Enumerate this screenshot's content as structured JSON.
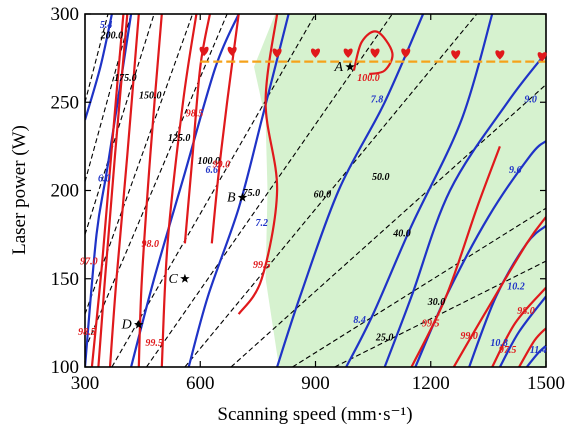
{
  "chart_data": {
    "type": "contour",
    "xlabel": "Scanning speed (mm·s⁻¹)",
    "ylabel": "Laser power (W)",
    "xlim": [
      300,
      1500
    ],
    "ylim": [
      100,
      300
    ],
    "xticks": [
      "300",
      "600",
      "900",
      "1200",
      "1500"
    ],
    "yticks": [
      "100",
      "150",
      "200",
      "250",
      "300"
    ],
    "colors": {
      "relative_density": "#e0191c",
      "roughness": "#1f33c7",
      "energy_density": "#000000",
      "region_fill": "#d6f2cf",
      "threshold_line": "#f5a21a"
    },
    "optimal_region": [
      [
        805,
        100
      ],
      [
        770,
        150
      ],
      [
        775,
        200
      ],
      [
        770,
        240
      ],
      [
        740,
        270
      ],
      [
        795,
        300
      ],
      [
        1500,
        300
      ],
      [
        1500,
        100
      ]
    ],
    "threshold_power": 273,
    "red_contours": [
      {
        "label": "",
        "points": [
          [
            318,
            100
          ],
          [
            345,
            160
          ],
          [
            372,
            230
          ],
          [
            400,
            300
          ]
        ],
        "label_at": null
      },
      {
        "label": "97.0",
        "points": [
          [
            335,
            100
          ],
          [
            352,
            150
          ],
          [
            378,
            220
          ],
          [
            410,
            300
          ]
        ],
        "label_at": [
          310,
          158
        ]
      },
      {
        "label": "98.5",
        "points": [
          [
            365,
            100
          ],
          [
            382,
            150
          ],
          [
            410,
            220
          ],
          [
            440,
            300
          ]
        ],
        "label_at": [
          305,
          118
        ]
      },
      {
        "label": "98.0",
        "points": [
          [
            440,
            100
          ],
          [
            448,
            150
          ],
          [
            470,
            220
          ],
          [
            500,
            300
          ]
        ],
        "label_at": [
          470,
          168
        ]
      },
      {
        "label": "99.5",
        "points": [
          [
            500,
            100
          ],
          [
            515,
            170
          ],
          [
            555,
            250
          ],
          [
            590,
            300
          ]
        ],
        "label_at": [
          480,
          112
        ]
      },
      {
        "label": "98.5",
        "points": [
          [
            560,
            170
          ],
          [
            580,
            220
          ],
          [
            600,
            270
          ],
          [
            625,
            300
          ]
        ],
        "label_at": [
          585,
          242
        ]
      },
      {
        "label": "99.0",
        "points": [
          [
            630,
            170
          ],
          [
            648,
            210
          ],
          [
            670,
            250
          ],
          [
            700,
            300
          ]
        ],
        "label_at": [
          655,
          213
        ]
      },
      {
        "label": "99.5",
        "points": [
          [
            700,
            130
          ],
          [
            760,
            150
          ],
          [
            800,
            200
          ],
          [
            770,
            250
          ],
          [
            800,
            300
          ]
        ],
        "label_at": [
          760,
          156
        ]
      },
      {
        "label": "99.5",
        "points": [
          [
            1150,
            100
          ],
          [
            1240,
            140
          ],
          [
            1320,
            190
          ],
          [
            1380,
            225
          ]
        ],
        "label_at": [
          1200,
          123
        ]
      },
      {
        "label": "99.0",
        "points": [
          [
            1260,
            100
          ],
          [
            1340,
            130
          ],
          [
            1450,
            170
          ],
          [
            1500,
            185
          ]
        ],
        "label_at": [
          1300,
          116
        ]
      },
      {
        "label": "98.0",
        "points": [
          [
            1360,
            100
          ],
          [
            1420,
            125
          ],
          [
            1500,
            145
          ]
        ],
        "label_at": [
          1448,
          130
        ]
      },
      {
        "label": "97.5",
        "points": [
          [
            1430,
            100
          ],
          [
            1470,
            115
          ],
          [
            1500,
            122
          ]
        ],
        "label_at": [
          1400,
          108
        ]
      },
      {
        "label": "100.0",
        "points": [
          [
            1000,
            268
          ],
          [
            1020,
            284
          ],
          [
            1060,
            290
          ],
          [
            1100,
            278
          ],
          [
            1080,
            268
          ],
          [
            1040,
            266
          ]
        ],
        "label_at": [
          1038,
          262
        ]
      }
    ],
    "blue_contours": [
      {
        "label": "5.4",
        "points": [
          [
            300,
            240
          ],
          [
            340,
            270
          ],
          [
            370,
            300
          ]
        ],
        "label_at": [
          355,
          292
        ]
      },
      {
        "label": "6.0",
        "points": [
          [
            300,
            100
          ],
          [
            330,
            175
          ],
          [
            360,
            215
          ],
          [
            420,
            300
          ]
        ],
        "label_at": [
          350,
          205
        ]
      },
      {
        "label": "6.6",
        "points": [
          [
            420,
            100
          ],
          [
            480,
            150
          ],
          [
            560,
            210
          ],
          [
            640,
            270
          ],
          [
            700,
            300
          ]
        ],
        "label_at": [
          630,
          210
        ]
      },
      {
        "label": "7.2",
        "points": [
          [
            570,
            100
          ],
          [
            620,
            140
          ],
          [
            700,
            190
          ],
          [
            760,
            240
          ],
          [
            830,
            300
          ]
        ],
        "label_at": [
          760,
          180
        ]
      },
      {
        "label": "7.8",
        "points": [
          [
            800,
            100
          ],
          [
            860,
            140
          ],
          [
            960,
            200
          ],
          [
            1080,
            250
          ],
          [
            1180,
            300
          ]
        ],
        "label_at": [
          1060,
          250
        ]
      },
      {
        "label": "8.4",
        "points": [
          [
            980,
            100
          ],
          [
            1050,
            130
          ],
          [
            1150,
            180
          ],
          [
            1280,
            240
          ],
          [
            1360,
            300
          ]
        ],
        "label_at": [
          1015,
          125
        ]
      },
      {
        "label": "9.0",
        "points": [
          [
            1080,
            100
          ],
          [
            1150,
            140
          ],
          [
            1250,
            200
          ],
          [
            1400,
            250
          ],
          [
            1500,
            278
          ]
        ],
        "label_at": [
          1460,
          250
        ]
      },
      {
        "label": "9.6",
        "points": [
          [
            1160,
            100
          ],
          [
            1240,
            140
          ],
          [
            1350,
            185
          ],
          [
            1460,
            220
          ],
          [
            1500,
            228
          ]
        ],
        "label_at": [
          1420,
          210
        ]
      },
      {
        "label": "10.2",
        "points": [
          [
            1300,
            100
          ],
          [
            1370,
            140
          ],
          [
            1450,
            170
          ],
          [
            1500,
            180
          ]
        ],
        "label_at": [
          1422,
          144
        ]
      },
      {
        "label": "10.8",
        "points": [
          [
            1380,
            100
          ],
          [
            1430,
            120
          ],
          [
            1500,
            140
          ]
        ],
        "label_at": [
          1378,
          112
        ]
      },
      {
        "label": "11.4",
        "points": [
          [
            1450,
            100
          ],
          [
            1480,
            108
          ],
          [
            1500,
            112
          ]
        ],
        "label_at": [
          1480,
          108
        ]
      }
    ],
    "energy_lines": [
      {
        "label": "200.0",
        "points": [
          [
            300,
            250
          ],
          [
            360,
            300
          ]
        ],
        "label_at": [
          370,
          286
        ]
      },
      {
        "label": "175.0",
        "points": [
          [
            300,
            205
          ],
          [
            420,
            300
          ]
        ],
        "label_at": [
          405,
          262
        ]
      },
      {
        "label": "150.0",
        "points": [
          [
            300,
            175
          ],
          [
            480,
            300
          ]
        ],
        "label_at": [
          470,
          252
        ]
      },
      {
        "label": "125.0",
        "points": [
          [
            300,
            130
          ],
          [
            580,
            300
          ]
        ],
        "label_at": [
          545,
          228
        ]
      },
      {
        "label": "100.0",
        "points": [
          [
            300,
            110
          ],
          [
            670,
            300
          ]
        ],
        "label_at": [
          622,
          215
        ]
      },
      {
        "label": "75.0",
        "points": [
          [
            370,
            100
          ],
          [
            900,
            300
          ]
        ],
        "label_at": [
          733,
          197
        ]
      },
      {
        "label": "60.0",
        "points": [
          [
            460,
            100
          ],
          [
            1100,
            300
          ]
        ],
        "label_at": [
          918,
          196
        ]
      },
      {
        "label": "50.0",
        "points": [
          [
            560,
            100
          ],
          [
            1320,
            300
          ]
        ],
        "label_at": [
          1070,
          206
        ]
      },
      {
        "label": "40.0",
        "points": [
          [
            680,
            100
          ],
          [
            1500,
            260
          ]
        ],
        "label_at": [
          1125,
          174
        ]
      },
      {
        "label": "30.0",
        "points": [
          [
            840,
            100
          ],
          [
            1500,
            190
          ]
        ],
        "label_at": [
          1215,
          135
        ]
      },
      {
        "label": "25.0",
        "points": [
          [
            950,
            100
          ],
          [
            1500,
            160
          ]
        ],
        "label_at": [
          1080,
          115
        ]
      }
    ],
    "points": [
      {
        "label": "A",
        "x": 990,
        "y": 270
      },
      {
        "label": "B",
        "x": 710,
        "y": 196
      },
      {
        "label": "C",
        "x": 560,
        "y": 150
      },
      {
        "label": "D",
        "x": 440,
        "y": 124
      }
    ],
    "hearts": [
      {
        "x": 610,
        "y": 279
      },
      {
        "x": 683,
        "y": 279
      },
      {
        "x": 800,
        "y": 278
      },
      {
        "x": 900,
        "y": 278
      },
      {
        "x": 985,
        "y": 278
      },
      {
        "x": 1055,
        "y": 278
      },
      {
        "x": 1135,
        "y": 278
      },
      {
        "x": 1265,
        "y": 277
      },
      {
        "x": 1380,
        "y": 277
      },
      {
        "x": 1490,
        "y": 276
      }
    ]
  }
}
